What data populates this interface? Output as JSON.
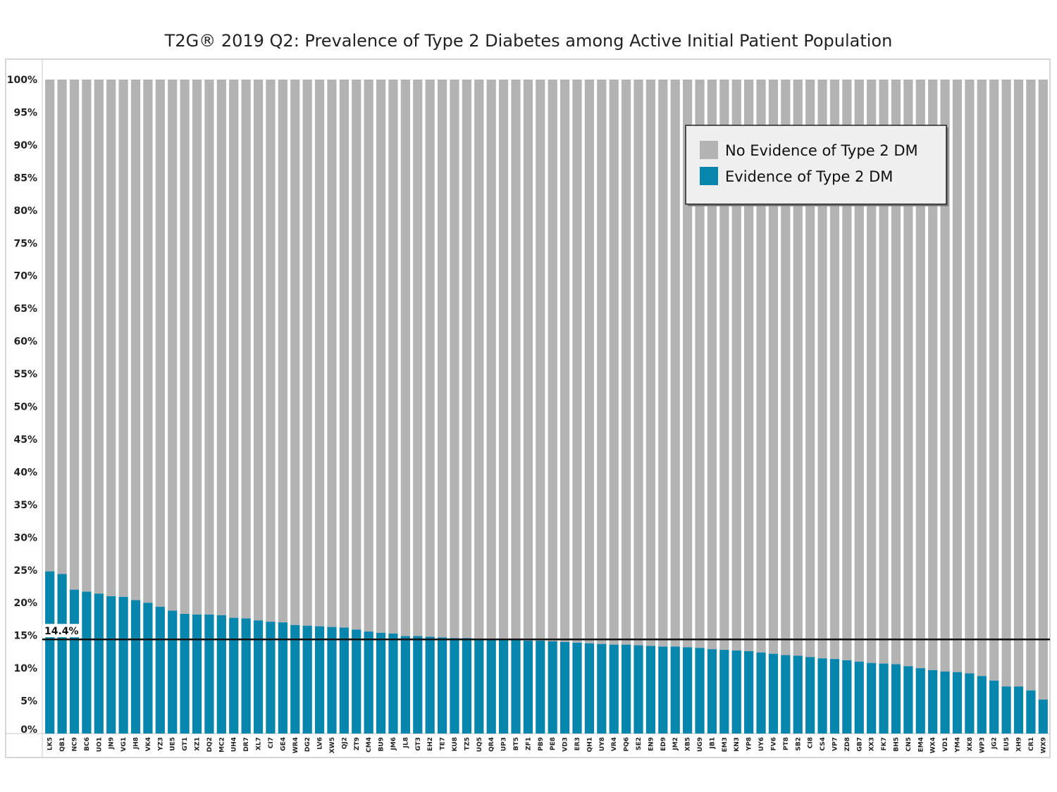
{
  "chart_data": {
    "type": "bar",
    "stacked": true,
    "title": "T2G® 2019 Q2: Prevalence of Type 2 Diabetes among Active Initial Patient Population",
    "xlabel": "",
    "ylabel": "",
    "ylim": [
      0,
      100
    ],
    "yticks": [
      "0%",
      "5%",
      "10%",
      "15%",
      "20%",
      "25%",
      "30%",
      "35%",
      "40%",
      "45%",
      "50%",
      "55%",
      "60%",
      "65%",
      "70%",
      "75%",
      "80%",
      "85%",
      "90%",
      "95%",
      "100%"
    ],
    "categories": [
      "LK5",
      "QB1",
      "NC9",
      "BC6",
      "UO1",
      "JN9",
      "VG1",
      "JH8",
      "VK4",
      "YZ3",
      "UE5",
      "GT1",
      "XZ1",
      "DQ2",
      "MC2",
      "UH4",
      "DR7",
      "XL7",
      "CI7",
      "GE4",
      "WR4",
      "DG2",
      "LV6",
      "XW5",
      "QJ2",
      "ZT9",
      "CM4",
      "BU9",
      "JM6",
      "JL8",
      "GT3",
      "EH2",
      "TE7",
      "KU8",
      "TZ5",
      "UQ5",
      "QR4",
      "UP3",
      "BT5",
      "ZF1",
      "PB9",
      "PE8",
      "VD3",
      "ER3",
      "QH1",
      "UY8",
      "VR4",
      "PQ6",
      "SE2",
      "EN9",
      "ED9",
      "JM2",
      "XB5",
      "UG9",
      "JB1",
      "EM3",
      "KN3",
      "YP8",
      "UY6",
      "FV6",
      "PT8",
      "SB2",
      "CI8",
      "CS4",
      "VP7",
      "ZD8",
      "GB7",
      "XX3",
      "FK7",
      "BH5",
      "CN5",
      "EM4",
      "WX4",
      "VD1",
      "YM4",
      "XK8",
      "WP3",
      "JG2",
      "EU5",
      "XH9",
      "CR1",
      "WX9"
    ],
    "series": [
      {
        "name": "Evidence of Type 2 DM",
        "color": "#0786ad",
        "values": [
          24.8,
          24.4,
          22.0,
          21.7,
          21.4,
          21.0,
          20.9,
          20.4,
          20.0,
          19.4,
          18.8,
          18.3,
          18.2,
          18.2,
          18.1,
          17.7,
          17.6,
          17.3,
          17.1,
          17.0,
          16.6,
          16.5,
          16.4,
          16.3,
          16.2,
          15.9,
          15.6,
          15.4,
          15.3,
          14.9,
          14.9,
          14.8,
          14.7,
          14.6,
          14.6,
          14.5,
          14.4,
          14.4,
          14.3,
          14.2,
          14.2,
          14.1,
          14.0,
          13.9,
          13.8,
          13.7,
          13.6,
          13.6,
          13.5,
          13.4,
          13.3,
          13.3,
          13.2,
          13.1,
          12.9,
          12.8,
          12.7,
          12.6,
          12.4,
          12.2,
          12.0,
          11.9,
          11.7,
          11.5,
          11.4,
          11.2,
          11.0,
          10.8,
          10.7,
          10.6,
          10.3,
          10.0,
          9.7,
          9.5,
          9.4,
          9.2,
          8.8,
          8.1,
          7.2,
          7.2,
          6.6,
          5.2
        ]
      },
      {
        "name": "No Evidence of Type 2 DM",
        "color": "#b3b3b3",
        "values_note": "complement to 100%"
      }
    ],
    "reference_line": {
      "value": 14.4,
      "label": "14.4%",
      "color": "#111111"
    },
    "legend": {
      "placement": "top-right",
      "entries": [
        "No Evidence of Type 2 DM",
        "Evidence of Type 2 DM"
      ]
    },
    "grid": false
  }
}
